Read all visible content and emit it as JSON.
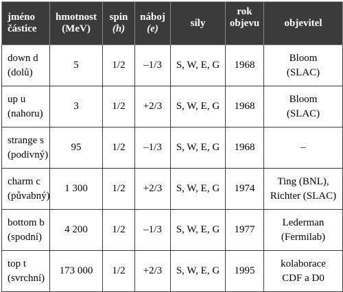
{
  "table": {
    "headers": [
      {
        "lines": [
          "jméno",
          "částice"
        ]
      },
      {
        "lines": [
          "hmotnost",
          "(MeV)"
        ]
      },
      {
        "lines": [
          "spin",
          "(h)"
        ]
      },
      {
        "lines": [
          "náboj",
          "(e)"
        ]
      },
      {
        "lines": [
          "síly"
        ]
      },
      {
        "lines": [
          "rok",
          "objevu"
        ]
      },
      {
        "lines": [
          "objevitel"
        ]
      }
    ],
    "rows": [
      {
        "name": [
          "down d",
          "(dolů)"
        ],
        "mass": "5",
        "spin": "1/2",
        "charge": "–1/3",
        "forces": "S, W, E, G",
        "year": "1968",
        "discoverer": [
          "Bloom",
          "(SLAC)"
        ]
      },
      {
        "name": [
          "up u",
          "(nahoru)"
        ],
        "mass": "3",
        "spin": "1/2",
        "charge": "+2/3",
        "forces": "S, W, E, G",
        "year": "1968",
        "discoverer": [
          "Bloom",
          "(SLAC)"
        ]
      },
      {
        "name": [
          "strange s",
          "(podivný)"
        ],
        "mass": "95",
        "spin": "1/2",
        "charge": "–1/3",
        "forces": "S, W, E, G",
        "year": "1968",
        "discoverer": [
          "–"
        ]
      },
      {
        "name": [
          "charm c",
          "(půvabný)"
        ],
        "mass": "1 300",
        "spin": "1/2",
        "charge": "+2/3",
        "forces": "S, W, E, G",
        "year": "1974",
        "discoverer": [
          "Ting (BNL),",
          "Richter (SLAC)"
        ]
      },
      {
        "name": [
          "bottom b",
          "(spodní)"
        ],
        "mass": "4 200",
        "spin": "1/2",
        "charge": "–1/3",
        "forces": "S, W, E, G",
        "year": "1977",
        "discoverer": [
          "Lederman",
          "(Fermilab)"
        ]
      },
      {
        "name": [
          "top t",
          "(svrchní)"
        ],
        "mass": "173 000",
        "spin": "1/2",
        "charge": "+2/3",
        "forces": "S, W, E, G",
        "year": "1995",
        "discoverer": [
          "kolaborace",
          "CDF a D0"
        ]
      }
    ]
  },
  "colors": {
    "header_bg": "#3b3b3b",
    "header_text": "#ffffff",
    "border": "#3b3b3b"
  }
}
